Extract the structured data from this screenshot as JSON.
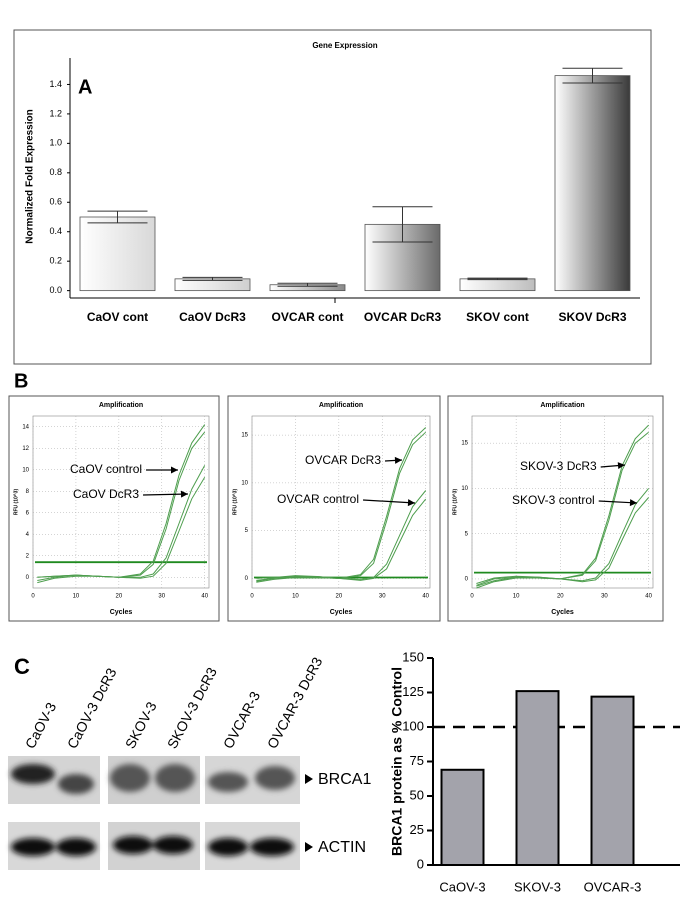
{
  "chart_data": [
    {
      "type": "bar",
      "title": "Gene Expression",
      "label": "A",
      "ylabel": "Normalized Fold Expression",
      "categories": [
        "CaOV cont",
        "CaOV DcR3",
        "OVCAR cont",
        "OVCAR DcR3",
        "SKOV cont",
        "SKOV DcR3"
      ],
      "values": [
        0.5,
        0.08,
        0.04,
        0.45,
        0.08,
        1.46
      ],
      "errors": [
        0.04,
        0.01,
        0.01,
        0.12,
        0.005,
        0.05
      ],
      "colors": [
        "#d8d8d8",
        "#cfcfcf",
        "#8a8a8a",
        "#6a6a6a",
        "#bdbdbd",
        "#3a3a3a"
      ],
      "ylim": [
        -0.05,
        1.6
      ],
      "yticks": [
        {
          "value": 0,
          "label": "0.0"
        },
        0.2,
        0.4,
        0.6,
        0.8,
        {
          "value": 1,
          "label": "1.0"
        },
        1.2,
        1.4
      ]
    },
    {
      "type": "line",
      "title": "Amplification",
      "label": "B",
      "xlabel": "Cycles",
      "ylabel": "RFU (10^3)",
      "x": [
        1,
        5,
        10,
        15,
        20,
        25,
        28,
        31,
        34,
        37,
        40
      ],
      "series": [
        {
          "color": "#4e9e4e",
          "values": [
            0,
            0.1,
            0.2,
            0.1,
            0,
            0.3,
            1.5,
            5,
            9.5,
            12.5,
            14.2
          ]
        },
        {
          "color": "#4e9e4e",
          "values": [
            0,
            0.1,
            0.2,
            0.1,
            0,
            0.2,
            1.2,
            4.5,
            9,
            12,
            13.5
          ]
        },
        {
          "color": "#4e9e4e",
          "values": [
            -0.3,
            0,
            0.2,
            0.1,
            0,
            0,
            0.3,
            1.8,
            5,
            8.2,
            10.4
          ]
        },
        {
          "color": "#4e9e4e",
          "values": [
            -0.5,
            -0.1,
            0.1,
            0.1,
            0,
            -0.1,
            0.1,
            1.3,
            4.3,
            7.3,
            9.3
          ]
        }
      ],
      "threshold": 1.4,
      "threshold_color": "#1f8a1f",
      "annotations": [
        "CaOV control",
        "CaOV DcR3"
      ],
      "xlim": [
        0,
        41
      ],
      "xticks": [
        0,
        10,
        20,
        30,
        40
      ],
      "ylim": [
        -1,
        15
      ],
      "yticks": [
        0,
        2,
        4,
        6,
        8,
        10,
        12,
        14
      ],
      "grid": true
    },
    {
      "type": "line",
      "title": "Amplification",
      "xlabel": "Cycles",
      "ylabel": "RFU (10^3)",
      "x": [
        1,
        5,
        10,
        15,
        20,
        25,
        28,
        31,
        34,
        37,
        40
      ],
      "series": [
        {
          "color": "#4e9e4e",
          "values": [
            0,
            0.1,
            0.3,
            0.2,
            0,
            0.4,
            2,
            6.5,
            11.5,
            14.5,
            15.8
          ]
        },
        {
          "color": "#4e9e4e",
          "values": [
            -0.2,
            0,
            0.2,
            0.2,
            0,
            0.3,
            1.6,
            6,
            11,
            14,
            15.3
          ]
        },
        {
          "color": "#4e9e4e",
          "values": [
            -0.3,
            0,
            0.2,
            0.1,
            0,
            -0.1,
            0.1,
            1.5,
            4.5,
            7.5,
            9.2
          ]
        },
        {
          "color": "#4e9e4e",
          "values": [
            -0.4,
            -0.1,
            0.1,
            0.1,
            0,
            -0.2,
            0,
            1,
            3.8,
            6.6,
            8.3
          ]
        }
      ],
      "threshold": 0.1,
      "threshold_color": "#1f8a1f",
      "annotations": [
        "OVCAR DcR3",
        "OVCAR control"
      ],
      "xlim": [
        0,
        41
      ],
      "xticks": [
        0,
        10,
        20,
        30,
        40
      ],
      "ylim": [
        -1,
        17
      ],
      "yticks": [
        0,
        5,
        10,
        15
      ],
      "grid": true
    },
    {
      "type": "line",
      "title": "Amplification",
      "xlabel": "Cycles",
      "ylabel": "RFU (10^3)",
      "x": [
        1,
        5,
        10,
        15,
        20,
        25,
        28,
        31,
        34,
        37,
        40
      ],
      "series": [
        {
          "color": "#4e9e4e",
          "values": [
            -0.5,
            0.1,
            0.3,
            0.2,
            0,
            0.5,
            2.3,
            7,
            12.5,
            15.5,
            17
          ]
        },
        {
          "color": "#4e9e4e",
          "values": [
            -0.7,
            0,
            0.2,
            0.2,
            0,
            0.4,
            2,
            6.5,
            12,
            15,
            16.2
          ]
        },
        {
          "color": "#4e9e4e",
          "values": [
            -0.8,
            -0.2,
            0.2,
            0.1,
            0,
            -0.2,
            0.1,
            1.7,
            5,
            8.2,
            10
          ]
        },
        {
          "color": "#4e9e4e",
          "values": [
            -1,
            -0.3,
            0.1,
            0.1,
            0,
            -0.3,
            -0.1,
            1.2,
            4.3,
            7.3,
            9
          ]
        }
      ],
      "threshold": 0.7,
      "threshold_color": "#1f8a1f",
      "annotations": [
        "SKOV-3 DcR3",
        "SKOV-3 control"
      ],
      "xlim": [
        0,
        41
      ],
      "xticks": [
        0,
        10,
        20,
        30,
        40
      ],
      "ylim": [
        -1,
        18
      ],
      "yticks": [
        0,
        5,
        10,
        15
      ],
      "grid": true
    },
    {
      "type": "bar",
      "ylabel": "BRCA1 protein as % Control",
      "categories": [
        "CaOV-3",
        "SKOV-3",
        "OVCAR-3"
      ],
      "values": [
        69,
        126,
        122
      ],
      "color": "#a3a3ab",
      "ref_line": 100,
      "ylim": [
        0,
        150
      ],
      "yticks": [
        0,
        25,
        50,
        75,
        100,
        125,
        150
      ]
    }
  ],
  "blot": {
    "label": "C",
    "lanes": [
      "CaOV-3",
      "CaOV-3 DcR3",
      "SKOV-3",
      "SKOV-3 DcR3",
      "OVCAR-3",
      "OVCAR-3 DcR3"
    ],
    "bands": [
      "BRCA1",
      "ACTIN"
    ]
  }
}
